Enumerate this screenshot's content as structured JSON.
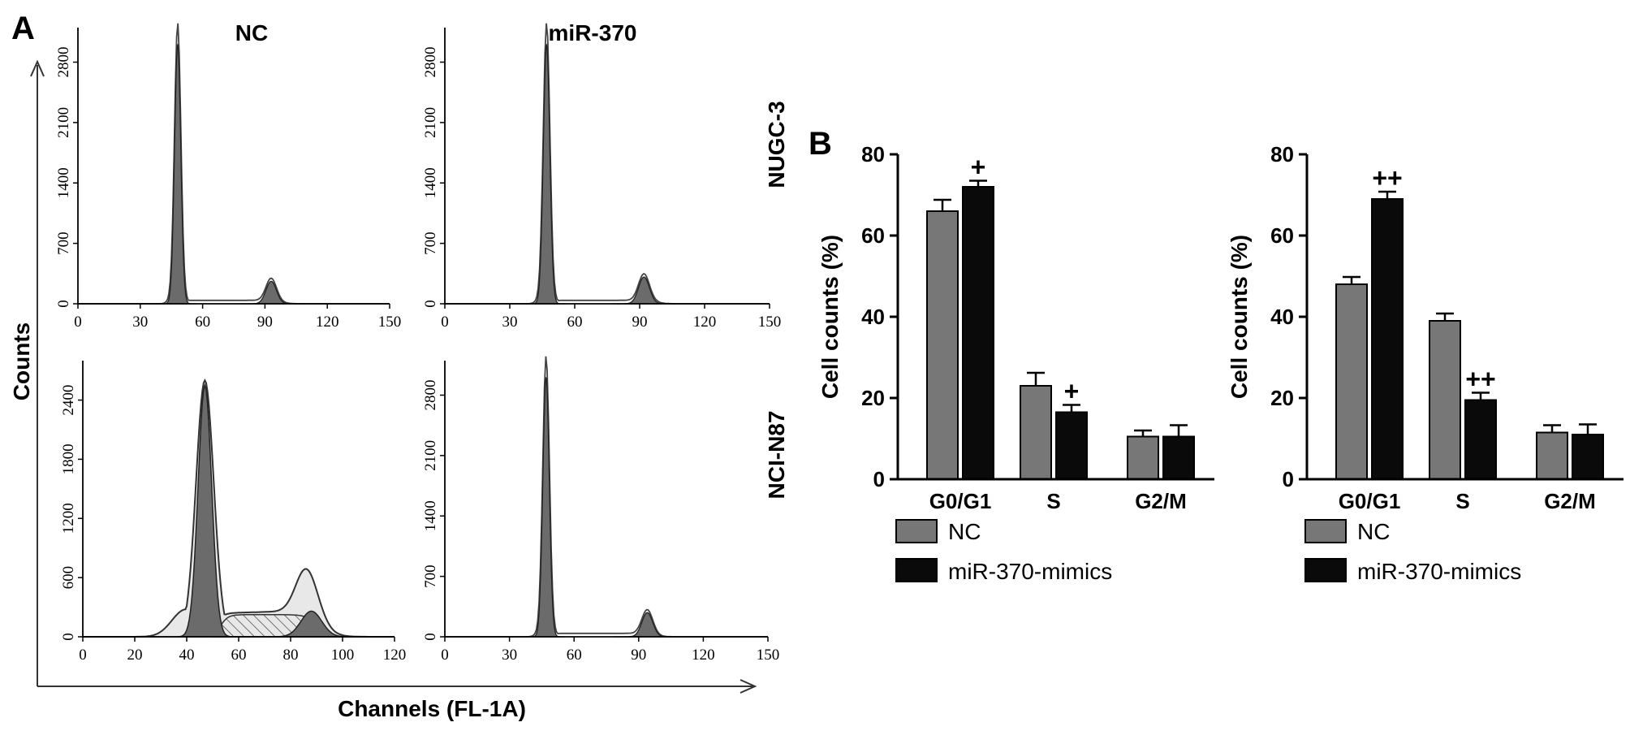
{
  "panel_a": {
    "letter": "A",
    "col_titles": [
      "NC",
      "miR-370"
    ],
    "row_labels": [
      "NUGC-3",
      "NCI-N87"
    ],
    "y_axis_label": "Counts",
    "x_axis_label": "Channels (FL-1A)"
  },
  "panel_b": {
    "letter": "B",
    "legend": [
      "NC",
      "miR-370-mimics"
    ],
    "colors": {
      "nc": "#777777",
      "mimics": "#0a0a0a"
    }
  },
  "chart_data": [
    {
      "type": "area",
      "subtitle": "NC",
      "row": "NUGC-3",
      "xlim": [
        0,
        150
      ],
      "xticks": [
        0,
        30,
        60,
        90,
        120,
        150
      ],
      "ylim": [
        0,
        3200
      ],
      "yticks": [
        0,
        700,
        1400,
        2100,
        2800
      ],
      "peaks": [
        {
          "center": 48,
          "height": 3000,
          "width": 1.5
        },
        {
          "center": 93,
          "height": 260,
          "width": 2.5
        }
      ],
      "s_phase_level": 40
    },
    {
      "type": "area",
      "subtitle": "miR-370",
      "row": "NUGC-3",
      "xlim": [
        0,
        150
      ],
      "xticks": [
        0,
        30,
        60,
        90,
        120,
        150
      ],
      "ylim": [
        0,
        3200
      ],
      "yticks": [
        0,
        700,
        1400,
        2100,
        2800
      ],
      "peaks": [
        {
          "center": 47,
          "height": 3000,
          "width": 1.5
        },
        {
          "center": 92,
          "height": 310,
          "width": 2.5
        }
      ],
      "s_phase_level": 40
    },
    {
      "type": "area",
      "subtitle": "NC",
      "row": "NCI-N87",
      "xlim": [
        0,
        120
      ],
      "xticks": [
        0,
        20,
        40,
        60,
        80,
        100,
        120
      ],
      "ylim": [
        0,
        2800
      ],
      "yticks": [
        0,
        600,
        1200,
        1800,
        2400
      ],
      "peaks": [
        {
          "center": 47,
          "height": 2550,
          "width": 2.6
        },
        {
          "center": 88,
          "height": 260,
          "width": 4
        }
      ],
      "envelope_peak": 2600,
      "shoulder_peak": 440,
      "s_phase_level": 280
    },
    {
      "type": "area",
      "subtitle": "miR-370",
      "row": "NCI-N87",
      "xlim": [
        0,
        150
      ],
      "xticks": [
        0,
        30,
        60,
        90,
        120,
        150
      ],
      "ylim": [
        0,
        3200
      ],
      "yticks": [
        0,
        700,
        1400,
        2100,
        2800
      ],
      "peaks": [
        {
          "center": 47,
          "height": 3000,
          "width": 1.5
        },
        {
          "center": 94,
          "height": 280,
          "width": 2.5
        }
      ],
      "s_phase_level": 40
    },
    {
      "type": "bar",
      "row": "NUGC-3",
      "categories": [
        "G0/G1",
        "S",
        "G2/M"
      ],
      "ylabel": "Cell counts (%)",
      "ylim": [
        0,
        80
      ],
      "yticks": [
        0,
        20,
        40,
        60,
        80
      ],
      "series": [
        {
          "name": "NC",
          "values": [
            66,
            23,
            10.5
          ],
          "errors": [
            2.8,
            3.2,
            1.5
          ]
        },
        {
          "name": "miR-370-mimics",
          "values": [
            72,
            16.5,
            10.5
          ],
          "errors": [
            1.5,
            1.8,
            2.8
          ]
        }
      ],
      "annotations": [
        "+",
        "+",
        ""
      ]
    },
    {
      "type": "bar",
      "row": "NCI-N87",
      "categories": [
        "G0/G1",
        "S",
        "G2/M"
      ],
      "ylabel": "Cell counts (%)",
      "ylim": [
        0,
        80
      ],
      "yticks": [
        0,
        20,
        40,
        60,
        80
      ],
      "series": [
        {
          "name": "NC",
          "values": [
            48,
            39,
            11.5
          ],
          "errors": [
            1.8,
            1.8,
            1.8
          ]
        },
        {
          "name": "miR-370-mimics",
          "values": [
            69,
            19.5,
            11
          ],
          "errors": [
            1.8,
            1.8,
            2.5
          ]
        }
      ],
      "annotations": [
        "++",
        "++",
        ""
      ]
    }
  ]
}
